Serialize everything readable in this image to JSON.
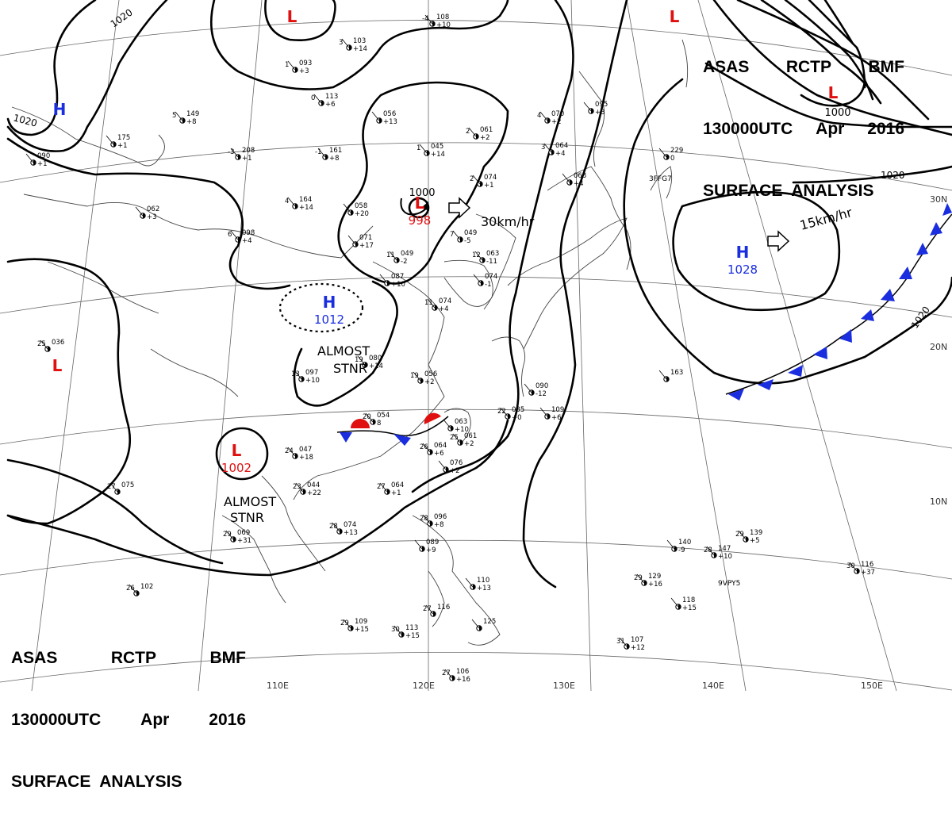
{
  "header_top": {
    "line1": [
      "ASAS",
      "RCTP",
      "BMF"
    ],
    "line2": [
      "130000UTC",
      "Apr",
      "2016"
    ],
    "line3": "SURFACE  ANALYSIS"
  },
  "header_bottom": {
    "line1": [
      "ASAS",
      "RCTP",
      "BMF"
    ],
    "line2": [
      "130000UTC",
      "Apr",
      "2016"
    ],
    "line3": "SURFACE  ANALYSIS"
  },
  "colors": {
    "high": "#1a2ee0",
    "low": "#e01010",
    "front_cold": "#1a2ee0",
    "front_warm": "#e01010",
    "isobar": "#000000",
    "coast": "#444444",
    "grid": "#666666"
  },
  "pressure_centers": [
    {
      "type": "H",
      "value": "",
      "near": "Northwest corner"
    },
    {
      "type": "L",
      "value": "",
      "near": "North, above Mongolia"
    },
    {
      "type": "L",
      "value": "",
      "near": "Far north-east"
    },
    {
      "type": "L",
      "value": "1000",
      "near": "North Pacific, top right"
    },
    {
      "type": "L",
      "value": "",
      "near": "West, Tibetan region"
    },
    {
      "type": "L",
      "value": "998",
      "near": "Northeast China",
      "isobar_label": "1000",
      "motion": "30km/hr"
    },
    {
      "type": "H",
      "value": "1012",
      "near": "North China plain",
      "note": "ALMOST STNR"
    },
    {
      "type": "L",
      "value": "1002",
      "near": "Southwest China",
      "note": "ALMOST STNR"
    },
    {
      "type": "H",
      "value": "1028",
      "near": "North Pacific east of Japan",
      "motion": "15km/hr"
    }
  ],
  "isobar_labels": [
    "1020",
    "1020",
    "1020",
    "1020"
  ],
  "notes": {
    "almost_stnr": "ALMOST\nSTNR"
  },
  "latitude_labels": [
    "30N",
    "20N",
    "10N"
  ],
  "longitude_labels": [
    "110E",
    "120E",
    "130E",
    "140E",
    "150E"
  ],
  "ship_label": "3FFG7",
  "ship_label_2": "9VPY5",
  "station_plots": [
    {
      "p": "093",
      "t": "1",
      "w": "+3"
    },
    {
      "p": "103",
      "t": "3",
      "w": "+14"
    },
    {
      "p": "108",
      "t": "-4",
      "w": "+10"
    },
    {
      "p": "113",
      "t": "0",
      "w": "+6"
    },
    {
      "p": "149",
      "t": "5",
      "w": "+8"
    },
    {
      "p": "056",
      "t": "",
      "w": "+13"
    },
    {
      "p": "061",
      "t": "2",
      "w": "+2"
    },
    {
      "p": "070",
      "t": "4",
      "w": "+2"
    },
    {
      "p": "095",
      "t": "",
      "w": "+3"
    },
    {
      "p": "175",
      "t": "",
      "w": "+1"
    },
    {
      "p": "208",
      "t": "-3",
      "w": "+1"
    },
    {
      "p": "161",
      "t": "-1",
      "w": "+8"
    },
    {
      "p": "045",
      "t": "1",
      "w": "+14"
    },
    {
      "p": "064",
      "t": "3",
      "w": "+4"
    },
    {
      "p": "074",
      "t": "2",
      "w": "+1"
    },
    {
      "p": "063",
      "t": "",
      "w": "+4"
    },
    {
      "p": "229",
      "t": "",
      "w": "0"
    },
    {
      "p": "090",
      "t": "",
      "w": "+1"
    },
    {
      "p": "164",
      "t": "4",
      "w": "+14"
    },
    {
      "p": "058",
      "t": "",
      "w": "+20"
    },
    {
      "p": "049",
      "t": "7",
      "w": "-5"
    },
    {
      "p": "062",
      "t": "",
      "w": "+3"
    },
    {
      "p": "098",
      "t": "6",
      "w": "+4"
    },
    {
      "p": "071",
      "t": "",
      "w": "+17"
    },
    {
      "p": "049",
      "t": "11",
      "w": "-2"
    },
    {
      "p": "063",
      "t": "12",
      "w": "-11"
    },
    {
      "p": "074",
      "t": "",
      "w": "-1"
    },
    {
      "p": "087",
      "t": "",
      "w": "+10"
    },
    {
      "p": "074",
      "t": "11",
      "w": "+4"
    },
    {
      "p": "080",
      "t": "19",
      "w": "+14"
    },
    {
      "p": "097",
      "t": "13",
      "w": "+10"
    },
    {
      "p": "056",
      "t": "19",
      "w": "+2"
    },
    {
      "p": "090",
      "t": "",
      "w": "-12"
    },
    {
      "p": "109",
      "t": "",
      "w": "+6"
    },
    {
      "p": "085",
      "t": "22",
      "w": "+0"
    },
    {
      "p": "163",
      "t": "",
      "w": ""
    },
    {
      "p": "054",
      "t": "20",
      "w": "8"
    },
    {
      "p": "063",
      "t": "",
      "w": "+10"
    },
    {
      "p": "061",
      "t": "25",
      "w": "+2"
    },
    {
      "p": "064",
      "t": "26",
      "w": "+6"
    },
    {
      "p": "076",
      "t": "",
      "w": "+2"
    },
    {
      "p": "047",
      "t": "24",
      "w": "+18"
    },
    {
      "p": "044",
      "t": "23",
      "w": "+22"
    },
    {
      "p": "075",
      "t": "27",
      "w": ""
    },
    {
      "p": "064",
      "t": "27",
      "w": "+1"
    },
    {
      "p": "074",
      "t": "28",
      "w": "+13"
    },
    {
      "p": "069",
      "t": "29",
      "w": "+31"
    },
    {
      "p": "036",
      "t": "25",
      "w": ""
    },
    {
      "p": "096",
      "t": "28",
      "w": "+8"
    },
    {
      "p": "089",
      "t": "",
      "w": "+9"
    },
    {
      "p": "110",
      "t": "",
      "w": "+13"
    },
    {
      "p": "116",
      "t": "27",
      "w": ""
    },
    {
      "p": "125",
      "t": "",
      "w": ""
    },
    {
      "p": "113",
      "t": "30",
      "w": "+15"
    },
    {
      "p": "109",
      "t": "29",
      "w": "+15"
    },
    {
      "p": "102",
      "t": "26",
      "w": ""
    },
    {
      "p": "140",
      "t": "",
      "w": "-9"
    },
    {
      "p": "147",
      "t": "28",
      "w": "+10"
    },
    {
      "p": "139",
      "t": "29",
      "w": "+5"
    },
    {
      "p": "129",
      "t": "29",
      "w": "+16"
    },
    {
      "p": "118",
      "t": "",
      "w": "+15"
    },
    {
      "p": "107",
      "t": "31",
      "w": "+12"
    },
    {
      "p": "116",
      "t": "30",
      "w": "+37"
    },
    {
      "p": "106",
      "t": "27",
      "w": "+16"
    }
  ]
}
